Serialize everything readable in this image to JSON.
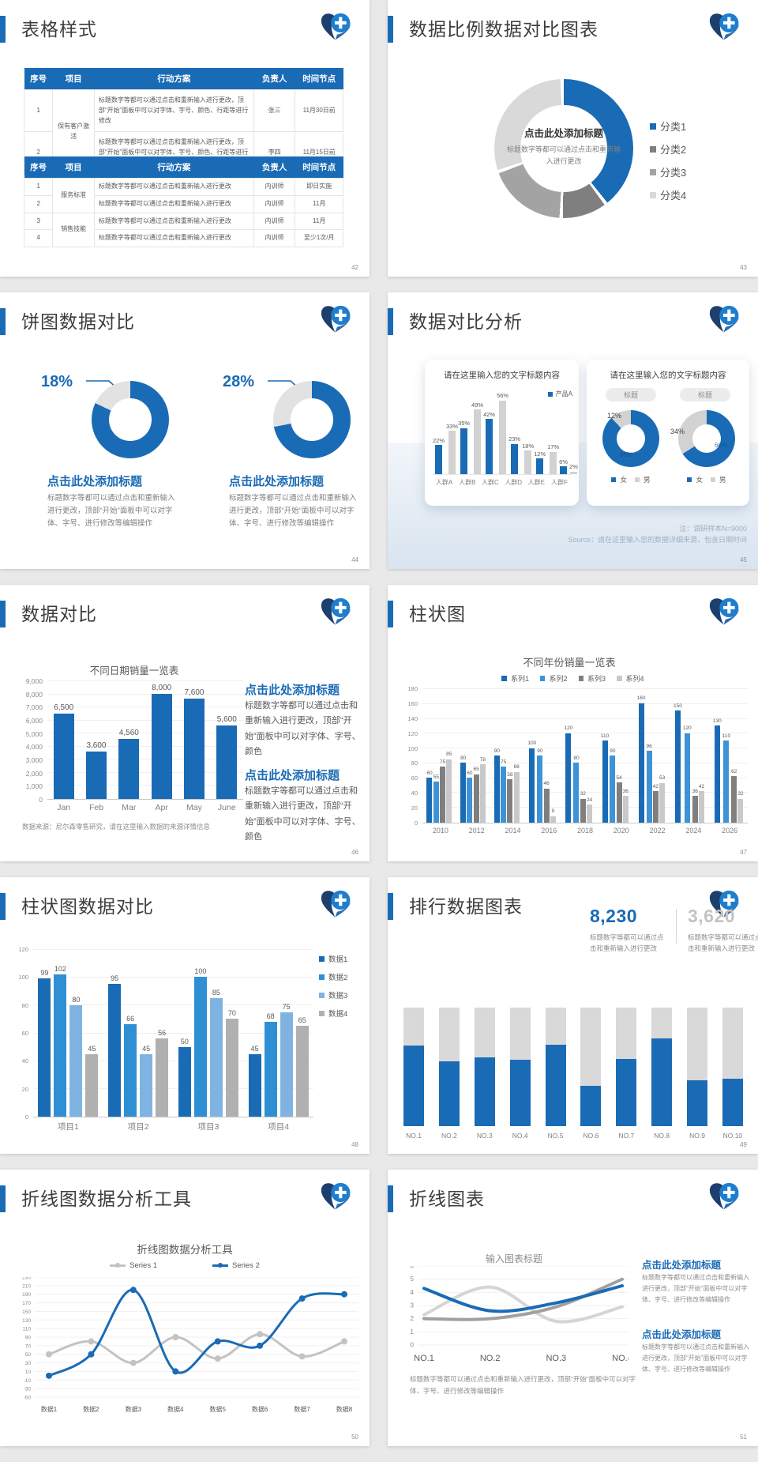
{
  "app": {
    "accent": "#1a6bb5"
  },
  "slides": {
    "s1": {
      "title": "表格样式",
      "page": "42",
      "tables": [
        {
          "headers": [
            "序号",
            "项目",
            "行动方案",
            "负责人",
            "时间节点"
          ],
          "colw": [
            "9%",
            "13%",
            "50%",
            "13%",
            "15%"
          ],
          "rows": [
            [
              "1",
              {
                "t": "保有客户激活",
                "rs": 2
              },
              "标题数字等都可以通过点击和重新输入进行更改，顶部“开始”面板中可以对字体、字号、颜色、行距等进行修改",
              "张三",
              "11月30日前"
            ],
            [
              "2",
              null,
              "标题数字等都可以通过点击和重新输入进行更改，顶部“开始”面板中可以对字体、字号、颜色、行距等进行修改",
              "李四",
              "11月15日前"
            ]
          ]
        },
        {
          "headers": [
            "序号",
            "项目",
            "行动方案",
            "负责人",
            "时间节点"
          ],
          "colw": [
            "9%",
            "13%",
            "50%",
            "13%",
            "15%"
          ],
          "rows": [
            [
              "1",
              {
                "t": "服务标准",
                "rs": 2
              },
              "标题数字等都可以通过点击和重新输入进行更改",
              "内训师",
              "即日实施"
            ],
            [
              "2",
              null,
              "标题数字等都可以通过点击和重新输入进行更改",
              "内训师",
              "11月"
            ],
            [
              "3",
              {
                "t": "销售技能",
                "rs": 2
              },
              "标题数字等都可以通过点击和重新输入进行更改",
              "内训师",
              "11月"
            ],
            [
              "4",
              null,
              "标题数字等都可以通过点击和重新输入进行更改",
              "内训师",
              "至少1次/月"
            ]
          ]
        }
      ]
    },
    "s2": {
      "title": "数据比例数据对比图表",
      "page": "43",
      "center_title": "点击此处添加标题",
      "center_desc": "标题数字等都可以通过点击和重新输入进行更改"
    },
    "s3": {
      "title": "饼图数据对比",
      "page": "44",
      "left": {
        "pct": "18%",
        "block_title": "点击此处添加标题",
        "desc": "标题数字等都可以通过点击和重新输入进行更改，顶部“开始”面板中可以对字体、字号、进行修改等编辑操作"
      },
      "right": {
        "pct": "28%",
        "block_title": "点击此处添加标题",
        "desc": "标题数字等都可以通过点击和重新输入进行更改，顶部“开始”面板中可以对字体、字号、进行修改等编辑操作"
      }
    },
    "s4": {
      "title": "数据对比分析",
      "page": "45",
      "card1": {
        "title": "请在这里输入您的文字标题内容"
      },
      "card2": {
        "title": "请在这里输入您的文字标题内容",
        "badge1": "标题",
        "badge2": "标题"
      },
      "gender": [
        {
          "label": "女",
          "color": "#1a6bb5"
        },
        {
          "label": "男",
          "color": "#d2d2d2"
        }
      ],
      "note1": "注：调研样本N=9000",
      "note2": "Source：请在这里输入您的数据详细来源，包含日期时间"
    },
    "s5": {
      "title": "数据对比",
      "page": "46",
      "block1": {
        "title": "点击此处添加标题",
        "desc": "标题数字等都可以通过点击和重新输入进行更改，顶部“开始”面板中可以对字体、字号、颜色"
      },
      "block2": {
        "title": "点击此处添加标题",
        "desc": "标题数字等都可以通过点击和重新输入进行更改，顶部“开始”面板中可以对字体、字号、颜色"
      }
    },
    "s6": {
      "title": "柱状图",
      "page": "47"
    },
    "s7": {
      "title": "柱状图数据对比",
      "page": "48"
    },
    "s8": {
      "title": "排行数据图表",
      "page": "49",
      "stat1": {
        "value": "8,230",
        "desc": "标题数字等都可以通过点击和重新输入进行更改"
      },
      "stat2": {
        "value": "3,620",
        "desc": "标题数字等都可以通过点击和重新输入进行更改"
      }
    },
    "s9": {
      "title": "折线图数据分析工具",
      "page": "50"
    },
    "s10": {
      "title": "折线图表",
      "page": "51",
      "below_desc": "标题数字等都可以通过点击和重新输入进行更改，顶部“开始”面板中可以对字体、字号、进行修改等编辑操作",
      "block1": {
        "title": "点击此处添加标题",
        "desc": "标题数字等都可以通过点击和重新输入进行更改，顶部“开始”面板中可以对字体、字号、进行修改等编辑操作"
      },
      "block2": {
        "title": "点击此处添加标题",
        "desc": "标题数字等都可以通过点击和重新输入进行更改，顶部“开始”面板中可以对字体、字号、进行修改等编辑操作"
      }
    }
  },
  "chart_data": [
    {
      "type": "pie",
      "slide": "数据比例数据对比图表",
      "slices": [
        {
          "label": "分类1",
          "pct": 40,
          "color": "#1a6bb5"
        },
        {
          "label": "分类2",
          "pct": 11,
          "color": "#7f7f7f"
        },
        {
          "label": "分类3",
          "pct": 19,
          "color": "#a3a3a3"
        },
        {
          "label": "分类4",
          "pct": 30,
          "color": "#d9d9d9"
        }
      ]
    },
    {
      "type": "pie",
      "slide": "饼图数据对比-左",
      "highlight": "18%",
      "slices": [
        {
          "label": "主体",
          "pct": 82,
          "color": "#1a6bb5"
        },
        {
          "label": "占比",
          "pct": 18,
          "color": "#e2e2e2"
        }
      ]
    },
    {
      "type": "pie",
      "slide": "饼图数据对比-右",
      "highlight": "28%",
      "slices": [
        {
          "label": "主体",
          "pct": 72,
          "color": "#1a6bb5"
        },
        {
          "label": "占比",
          "pct": 28,
          "color": "#e2e2e2"
        }
      ]
    },
    {
      "type": "bar",
      "slide": "数据对比分析-柱形",
      "title": "请在这里输入您的文字标题内容",
      "ymax": 60,
      "categories": [
        "人群A",
        "人群B",
        "人群C",
        "人群D",
        "人群E",
        "人群F"
      ],
      "series": [
        {
          "label": "产品A",
          "color": "#1a6bb5",
          "values": [
            22,
            35,
            42,
            23,
            12,
            6
          ],
          "labels": [
            "22%",
            "35%",
            "42%",
            "23%",
            "12%",
            "6%"
          ]
        },
        {
          "label": "",
          "color": "#d2d2d2",
          "values": [
            33,
            49,
            56,
            18,
            17,
            2
          ],
          "labels": [
            "33%",
            "49%",
            "56%",
            "18%",
            "17%",
            "2%"
          ]
        }
      ]
    },
    {
      "type": "pie",
      "slide": "数据对比分析-环形1",
      "slices": [
        {
          "label": "女",
          "pct": 88,
          "color": "#1a6bb5",
          "value_label": "88%"
        },
        {
          "label": "男",
          "pct": 12,
          "color": "#d2d2d2",
          "value_label": "12%"
        }
      ]
    },
    {
      "type": "pie",
      "slide": "数据对比分析-环形2",
      "slices": [
        {
          "label": "女",
          "pct": 66,
          "color": "#1a6bb5",
          "value_label": "66%"
        },
        {
          "label": "男",
          "pct": 34,
          "color": "#d2d2d2",
          "value_label": "34%"
        }
      ]
    },
    {
      "type": "bar",
      "slide": "数据对比",
      "title": "不同日期销量一览表",
      "ymax": 9000,
      "ystep": 1000,
      "categories": [
        "Jan",
        "Feb",
        "Mar",
        "Apr",
        "May",
        "June"
      ],
      "series": [
        {
          "label": "销量",
          "color": "#1a6bb5",
          "values": [
            6500,
            3600,
            4560,
            8000,
            7600,
            5600
          ],
          "labels": [
            "6,500",
            "3,600",
            "4,560",
            "8,000",
            "7,600",
            "5,600"
          ]
        }
      ],
      "source": "数据来源：尼尔森零售研究，请在这里输入数据的来源详情信息"
    },
    {
      "type": "bar",
      "slide": "柱状图",
      "title": "不同年份销量一览表",
      "ymax": 180,
      "ystep": 20,
      "categories": [
        "2010",
        "2012",
        "2014",
        "2016",
        "2018",
        "2020",
        "2022",
        "2024",
        "2026"
      ],
      "series": [
        {
          "label": "系列1",
          "color": "#1a6bb5",
          "values": [
            60,
            80,
            90,
            100,
            120,
            110,
            160,
            150,
            130
          ]
        },
        {
          "label": "系列2",
          "color": "#3e93d6",
          "values": [
            55,
            60,
            75,
            90,
            80,
            90,
            96,
            120,
            110
          ]
        },
        {
          "label": "系列3",
          "color": "#7f7f7f",
          "values": [
            75,
            65,
            58,
            46,
            32,
            54,
            42,
            36,
            62
          ]
        },
        {
          "label": "系列4",
          "color": "#c9c9c9",
          "values": [
            85,
            78,
            68,
            9,
            24,
            36,
            53,
            42,
            32
          ]
        }
      ]
    },
    {
      "type": "bar",
      "slide": "柱状图数据对比",
      "ymax": 120,
      "ystep": 20,
      "categories": [
        "项目1",
        "项目2",
        "项目3",
        "项目4"
      ],
      "series": [
        {
          "label": "数据1",
          "color": "#1a6bb5",
          "values": [
            99,
            95,
            50,
            45
          ]
        },
        {
          "label": "数据2",
          "color": "#2f8fd4",
          "values": [
            102,
            66,
            100,
            68
          ]
        },
        {
          "label": "数据3",
          "color": "#7fb4e2",
          "values": [
            80,
            45,
            85,
            75
          ]
        },
        {
          "label": "数据4",
          "color": "#b0b0b0",
          "values": [
            45,
            56,
            70,
            65
          ]
        }
      ]
    },
    {
      "type": "bar",
      "subtype": "ranking",
      "slide": "排行数据图表",
      "categories": [
        "NO.1",
        "NO.2",
        "NO.3",
        "NO.4",
        "NO.5",
        "NO.6",
        "NO.7",
        "NO.8",
        "NO.9",
        "NO.10"
      ],
      "filled_fraction": [
        0.68,
        0.55,
        0.58,
        0.56,
        0.69,
        0.34,
        0.57,
        0.74,
        0.39,
        0.4
      ],
      "bar_color": "#1a6bb5",
      "track_color": "#d9d9d9"
    },
    {
      "type": "line",
      "slide": "折线图数据分析工具",
      "title": "折线图数据分析工具",
      "ymin": -50,
      "ymax": 230,
      "ystep": 20,
      "x": [
        "数据1",
        "数据2",
        "数据3",
        "数据4",
        "数据5",
        "数据6",
        "数据7",
        "数据8"
      ],
      "series": [
        {
          "label": "Series 1",
          "color": "#c3c3c3",
          "values": [
            50,
            80,
            30,
            90,
            40,
            97,
            45,
            80
          ]
        },
        {
          "label": "Series 2",
          "color": "#1a6bb5",
          "values": [
            0,
            50,
            200,
            10,
            80,
            70,
            180,
            190
          ]
        }
      ]
    },
    {
      "type": "line",
      "slide": "折线图表",
      "title": "输入图表标题",
      "ymin": 0,
      "ymax": 6,
      "ystep": 1,
      "x": [
        "NO.1",
        "NO.2",
        "NO.3",
        "NO.4"
      ],
      "series": [
        {
          "label": "浅灰线",
          "color": "#d5d5d5",
          "values": [
            2.3,
            4.4,
            1.8,
            2.9
          ]
        },
        {
          "label": "深灰线",
          "color": "#a0a0a0",
          "values": [
            2,
            2,
            2.9,
            5
          ]
        },
        {
          "label": "蓝色线",
          "color": "#1a6bb5",
          "values": [
            4.3,
            2.6,
            3.2,
            4.5
          ]
        }
      ]
    }
  ]
}
